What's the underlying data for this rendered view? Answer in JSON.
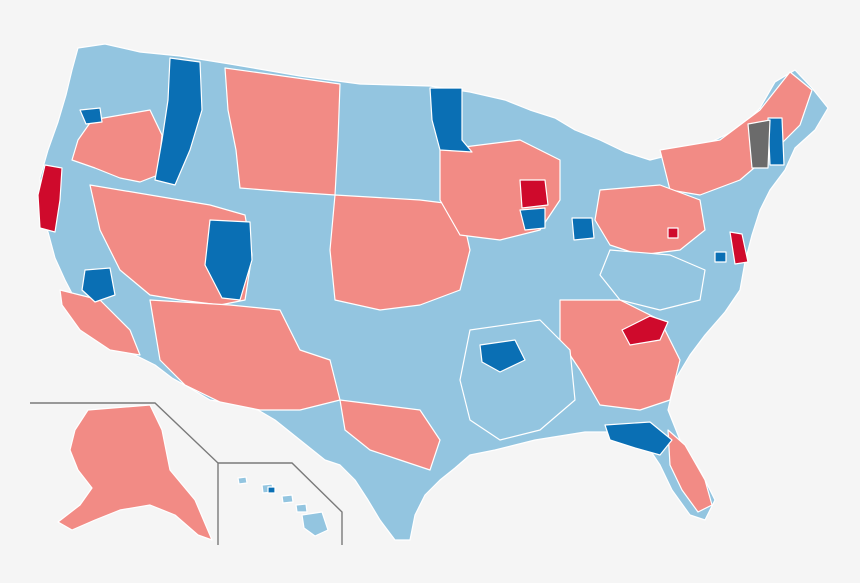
{
  "legend_colors": {
    "light_red": "#f28b85",
    "dark_red": "#cf0a2c",
    "light_blue": "#93c5e0",
    "dark_blue": "#0a6fb4",
    "gray": "#6b6b6b",
    "background": "#f5f5f5"
  }
}
